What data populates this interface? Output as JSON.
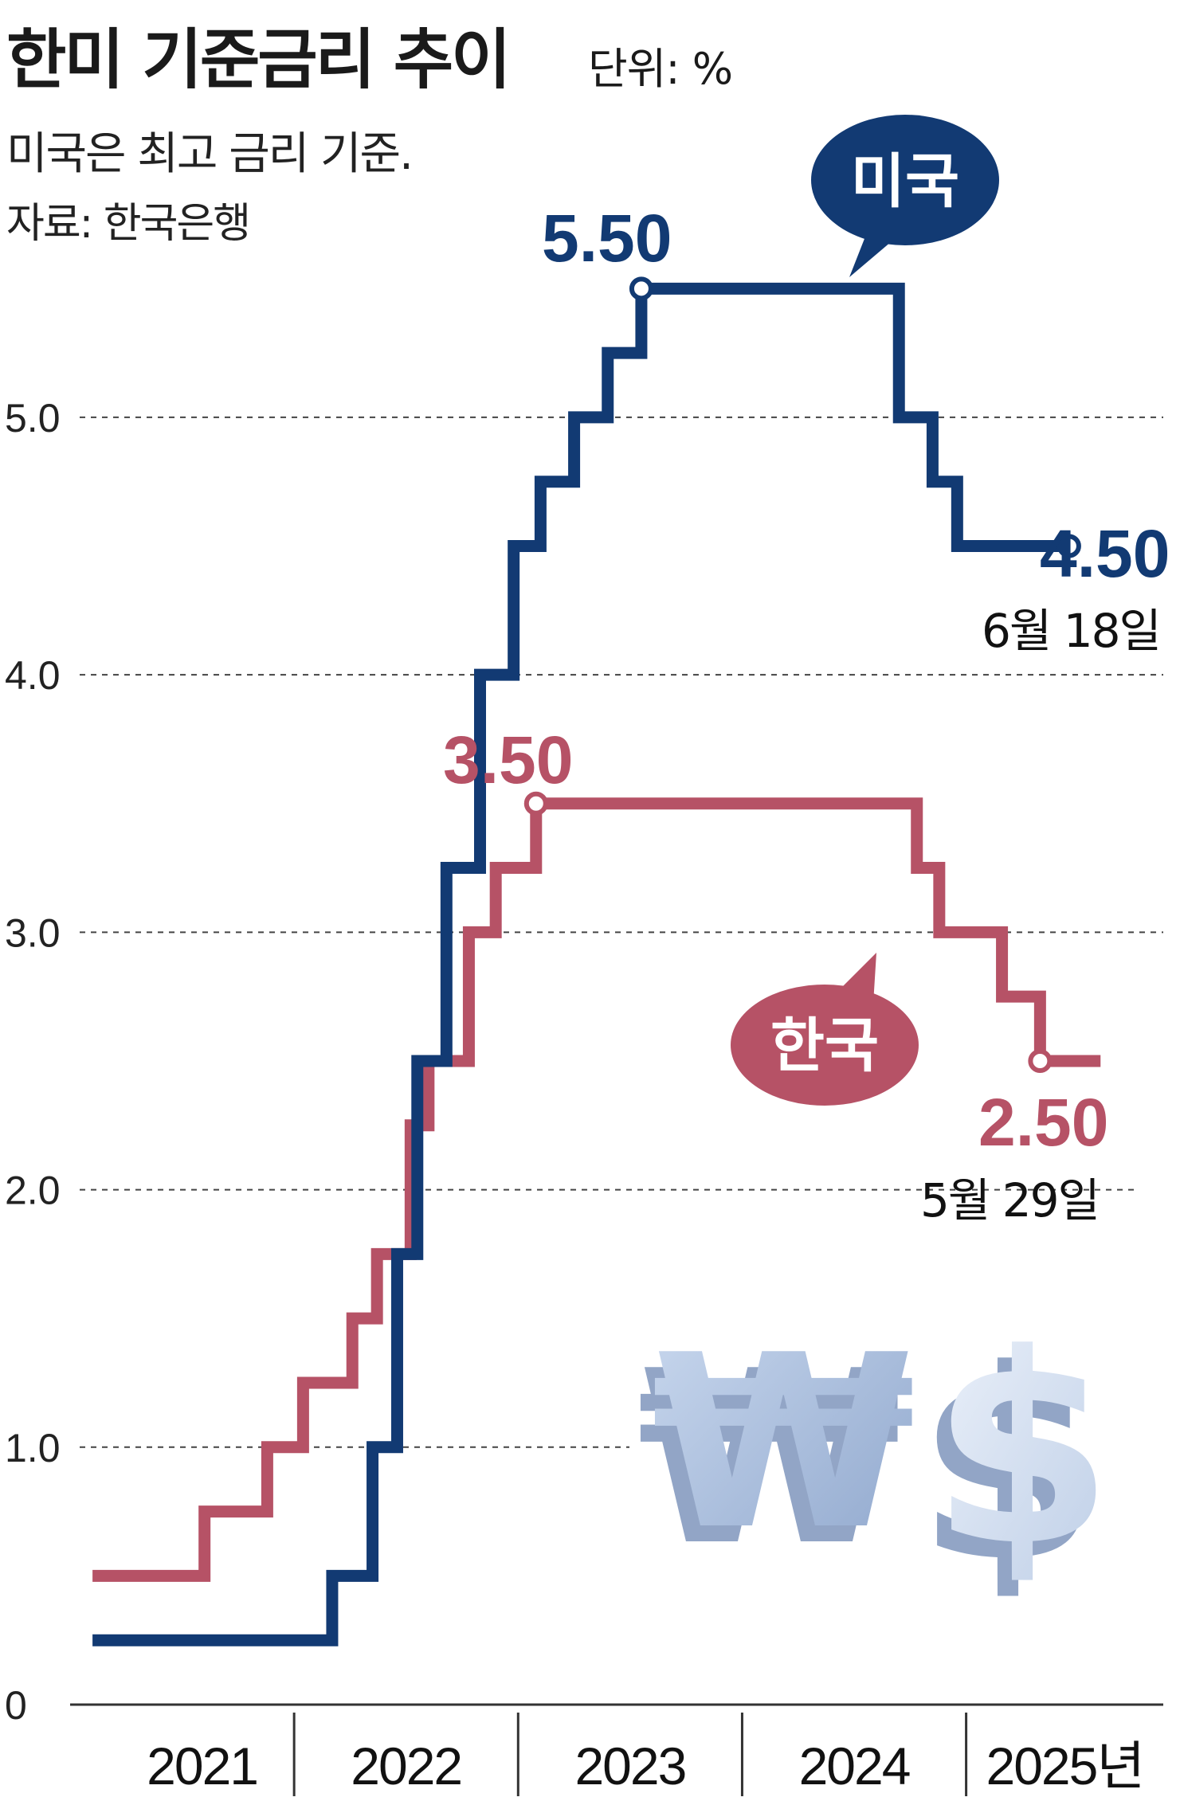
{
  "header": {
    "title": "한미 기준금리 추이",
    "unit": "단위: %",
    "subtitle": "미국은 최고 금리 기준.",
    "source": "자료: 한국은행"
  },
  "colors": {
    "us": "#123a73",
    "korea": "#b65266",
    "grid": "#444444",
    "axis": "#333333"
  },
  "annotations": {
    "us_bubble": "미국",
    "korea_bubble": "한국",
    "us_peak": "5.50",
    "korea_peak": "3.50",
    "us_last": "4.50",
    "korea_last": "2.50",
    "us_last_date": "6월 18일",
    "korea_last_date": "5월 29일"
  },
  "decoration": {
    "won_symbol": "₩",
    "dollar_symbol": "$"
  },
  "chart_data": {
    "type": "line",
    "step": true,
    "xlabel": "",
    "ylabel": "",
    "xlim": [
      2021.0,
      2025.88
    ],
    "ylim": [
      0,
      5.6
    ],
    "y_gridlines": [
      1.0,
      2.0,
      3.0,
      4.0,
      5.0
    ],
    "grid": true,
    "x_ticks": [
      "2021",
      "2022",
      "2023",
      "2024",
      "2025년"
    ],
    "y_ticks": [
      "0",
      "1.0",
      "2.0",
      "3.0",
      "4.0",
      "5.0"
    ],
    "series": [
      {
        "name": "미국",
        "points": [
          [
            2021.1,
            0.25
          ],
          [
            2022.17,
            0.5
          ],
          [
            2022.35,
            1.0
          ],
          [
            2022.46,
            1.75
          ],
          [
            2022.55,
            2.5
          ],
          [
            2022.68,
            3.25
          ],
          [
            2022.83,
            4.0
          ],
          [
            2022.98,
            4.5
          ],
          [
            2023.1,
            4.75
          ],
          [
            2023.25,
            5.0
          ],
          [
            2023.4,
            5.25
          ],
          [
            2023.55,
            5.5
          ],
          [
            2024.7,
            5.0
          ],
          [
            2024.85,
            4.75
          ],
          [
            2024.96,
            4.5
          ],
          [
            2025.46,
            4.5
          ]
        ]
      },
      {
        "name": "한국",
        "points": [
          [
            2021.1,
            0.5
          ],
          [
            2021.6,
            0.75
          ],
          [
            2021.88,
            1.0
          ],
          [
            2022.04,
            1.25
          ],
          [
            2022.26,
            1.5
          ],
          [
            2022.37,
            1.75
          ],
          [
            2022.52,
            2.25
          ],
          [
            2022.6,
            2.5
          ],
          [
            2022.78,
            3.0
          ],
          [
            2022.9,
            3.25
          ],
          [
            2023.08,
            3.5
          ],
          [
            2024.78,
            3.25
          ],
          [
            2024.88,
            3.0
          ],
          [
            2025.16,
            2.75
          ],
          [
            2025.33,
            2.5
          ],
          [
            2025.6,
            2.5
          ]
        ]
      }
    ]
  }
}
